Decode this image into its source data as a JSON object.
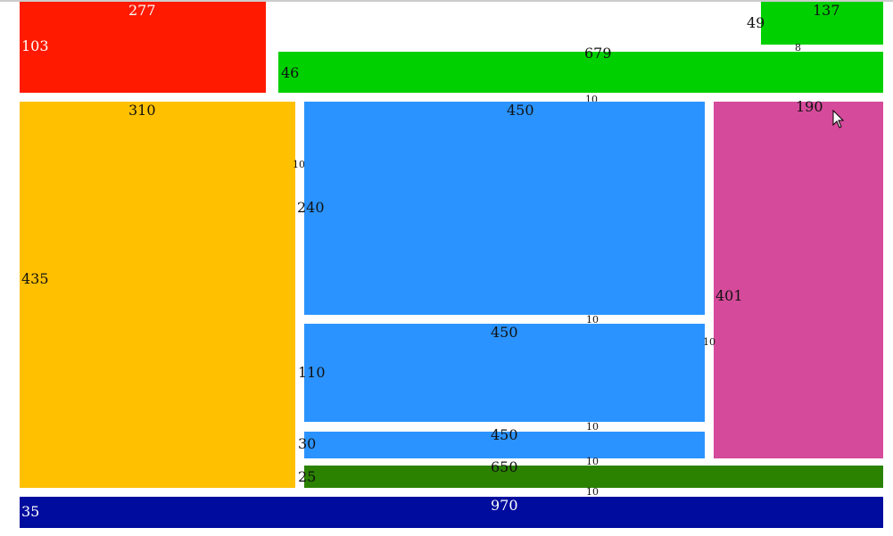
{
  "boxes": [
    {
      "width": 277,
      "height": 103
    },
    {
      "width": 137,
      "height": 49
    },
    {
      "width": 679,
      "height": 46
    },
    {
      "width": 310,
      "height": 435
    },
    {
      "width": 450,
      "height": 240
    },
    {
      "width": 190,
      "height": 401
    },
    {
      "width": 450,
      "height": 110
    },
    {
      "width": 450,
      "height": 30
    },
    {
      "width": 650,
      "height": 25
    },
    {
      "width": 970,
      "height": 35
    }
  ],
  "gaps": [
    8,
    10,
    10,
    10,
    10,
    10,
    10,
    10
  ]
}
